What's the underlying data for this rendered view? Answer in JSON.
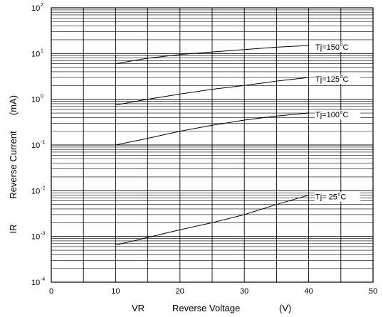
{
  "chart_data": {
    "type": "line",
    "x_scale": "linear",
    "y_scale": "log",
    "xlim": [
      0,
      50
    ],
    "ylim": [
      0.0001,
      100
    ],
    "x_ticks": [
      "0",
      "10",
      "20",
      "30",
      "40",
      "50"
    ],
    "y_ticks": [
      {
        "base": "10",
        "exp": "-4"
      },
      {
        "base": "10",
        "exp": "-3"
      },
      {
        "base": "10",
        "exp": "-2"
      },
      {
        "base": "10",
        "exp": "-1"
      },
      {
        "base": "10",
        "exp": "0"
      },
      {
        "base": "10",
        "exp": "1"
      },
      {
        "base": "10",
        "exp": "2"
      }
    ],
    "xlabel": {
      "symbol": "VR",
      "text": "Reverse Voltage",
      "unit": "(V)"
    },
    "ylabel": {
      "symbol": "IR",
      "text": "Reverse Current",
      "unit": "(mA)"
    },
    "grid": true,
    "series": [
      {
        "name": "Tj=150°C",
        "label_pre": "Tj=150",
        "label_deg": "o",
        "label_post": "C",
        "x": [
          10,
          15,
          20,
          25,
          30,
          35,
          40
        ],
        "y": [
          6,
          7.9,
          9.5,
          10.8,
          12.2,
          13.8,
          15
        ]
      },
      {
        "name": "Tj=125°C",
        "label_pre": "Tj=125",
        "label_deg": "o",
        "label_post": "C",
        "x": [
          10,
          15,
          20,
          25,
          30,
          35,
          40
        ],
        "y": [
          0.75,
          1.0,
          1.3,
          1.65,
          2.0,
          2.5,
          3.0
        ]
      },
      {
        "name": "Tj=100°C",
        "label_pre": "Tj=100",
        "label_deg": "o",
        "label_post": "C",
        "x": [
          10,
          15,
          20,
          25,
          30,
          35,
          40
        ],
        "y": [
          0.1,
          0.14,
          0.2,
          0.27,
          0.35,
          0.43,
          0.5
        ]
      },
      {
        "name": "Tj= 25°C",
        "label_pre": "Tj= 25",
        "label_deg": "o",
        "label_post": "C",
        "x": [
          10,
          15,
          20,
          25,
          30,
          35,
          40
        ],
        "y": [
          0.00065,
          0.00095,
          0.0014,
          0.002,
          0.003,
          0.005,
          0.008
        ]
      }
    ]
  }
}
